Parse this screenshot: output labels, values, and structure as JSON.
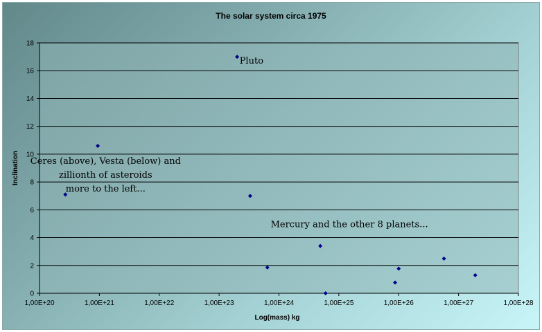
{
  "chart_data": {
    "type": "scatter",
    "title": "The solar system circa 1975",
    "xlabel": "Log(mass) kg",
    "ylabel": "Inclination",
    "x_scale": "log",
    "xlim": [
      1e+20,
      1e+28
    ],
    "ylim": [
      0,
      18
    ],
    "y_ticks": [
      0,
      2,
      4,
      6,
      8,
      10,
      12,
      14,
      16,
      18
    ],
    "x_tick_labels": [
      "1,00E+20",
      "1,00E+21",
      "1,00E+22",
      "1,00E+23",
      "1,00E+24",
      "1,00E+25",
      "1,00E+26",
      "1,00E+27",
      "1,00E+28"
    ],
    "grid": "horizontal",
    "legend": "none",
    "marker_color": "#00008b",
    "plot_bg_color": "#8fb4b6",
    "points": [
      {
        "x": 2.7e+20,
        "y": 7.1
      },
      {
        "x": 9.4e+20,
        "y": 10.6
      },
      {
        "x": 2e+23,
        "y": 17.0
      },
      {
        "x": 3.3e+23,
        "y": 7.0
      },
      {
        "x": 6.4e+23,
        "y": 1.85
      },
      {
        "x": 4.9e+24,
        "y": 3.4
      },
      {
        "x": 6e+24,
        "y": 0.0
      },
      {
        "x": 8.7e+25,
        "y": 0.77
      },
      {
        "x": 1e+26,
        "y": 1.77
      },
      {
        "x": 5.7e+26,
        "y": 2.49
      },
      {
        "x": 1.9e+27,
        "y": 1.3
      }
    ],
    "annotations": [
      {
        "lines": [
          "Pluto"
        ],
        "x": 2.2e+23,
        "y": 16.5,
        "anchor": "start"
      },
      {
        "lines": [
          "Ceres (above), Vesta (below) and",
          "zillionth of asteroids",
          "more to the left..."
        ],
        "x": 1.27e+21,
        "y": 9.3,
        "anchor": "middle"
      },
      {
        "lines": [
          "Mercury and the other 8 planets..."
        ],
        "x": 1.5e+25,
        "y": 4.75,
        "anchor": "middle"
      }
    ]
  }
}
